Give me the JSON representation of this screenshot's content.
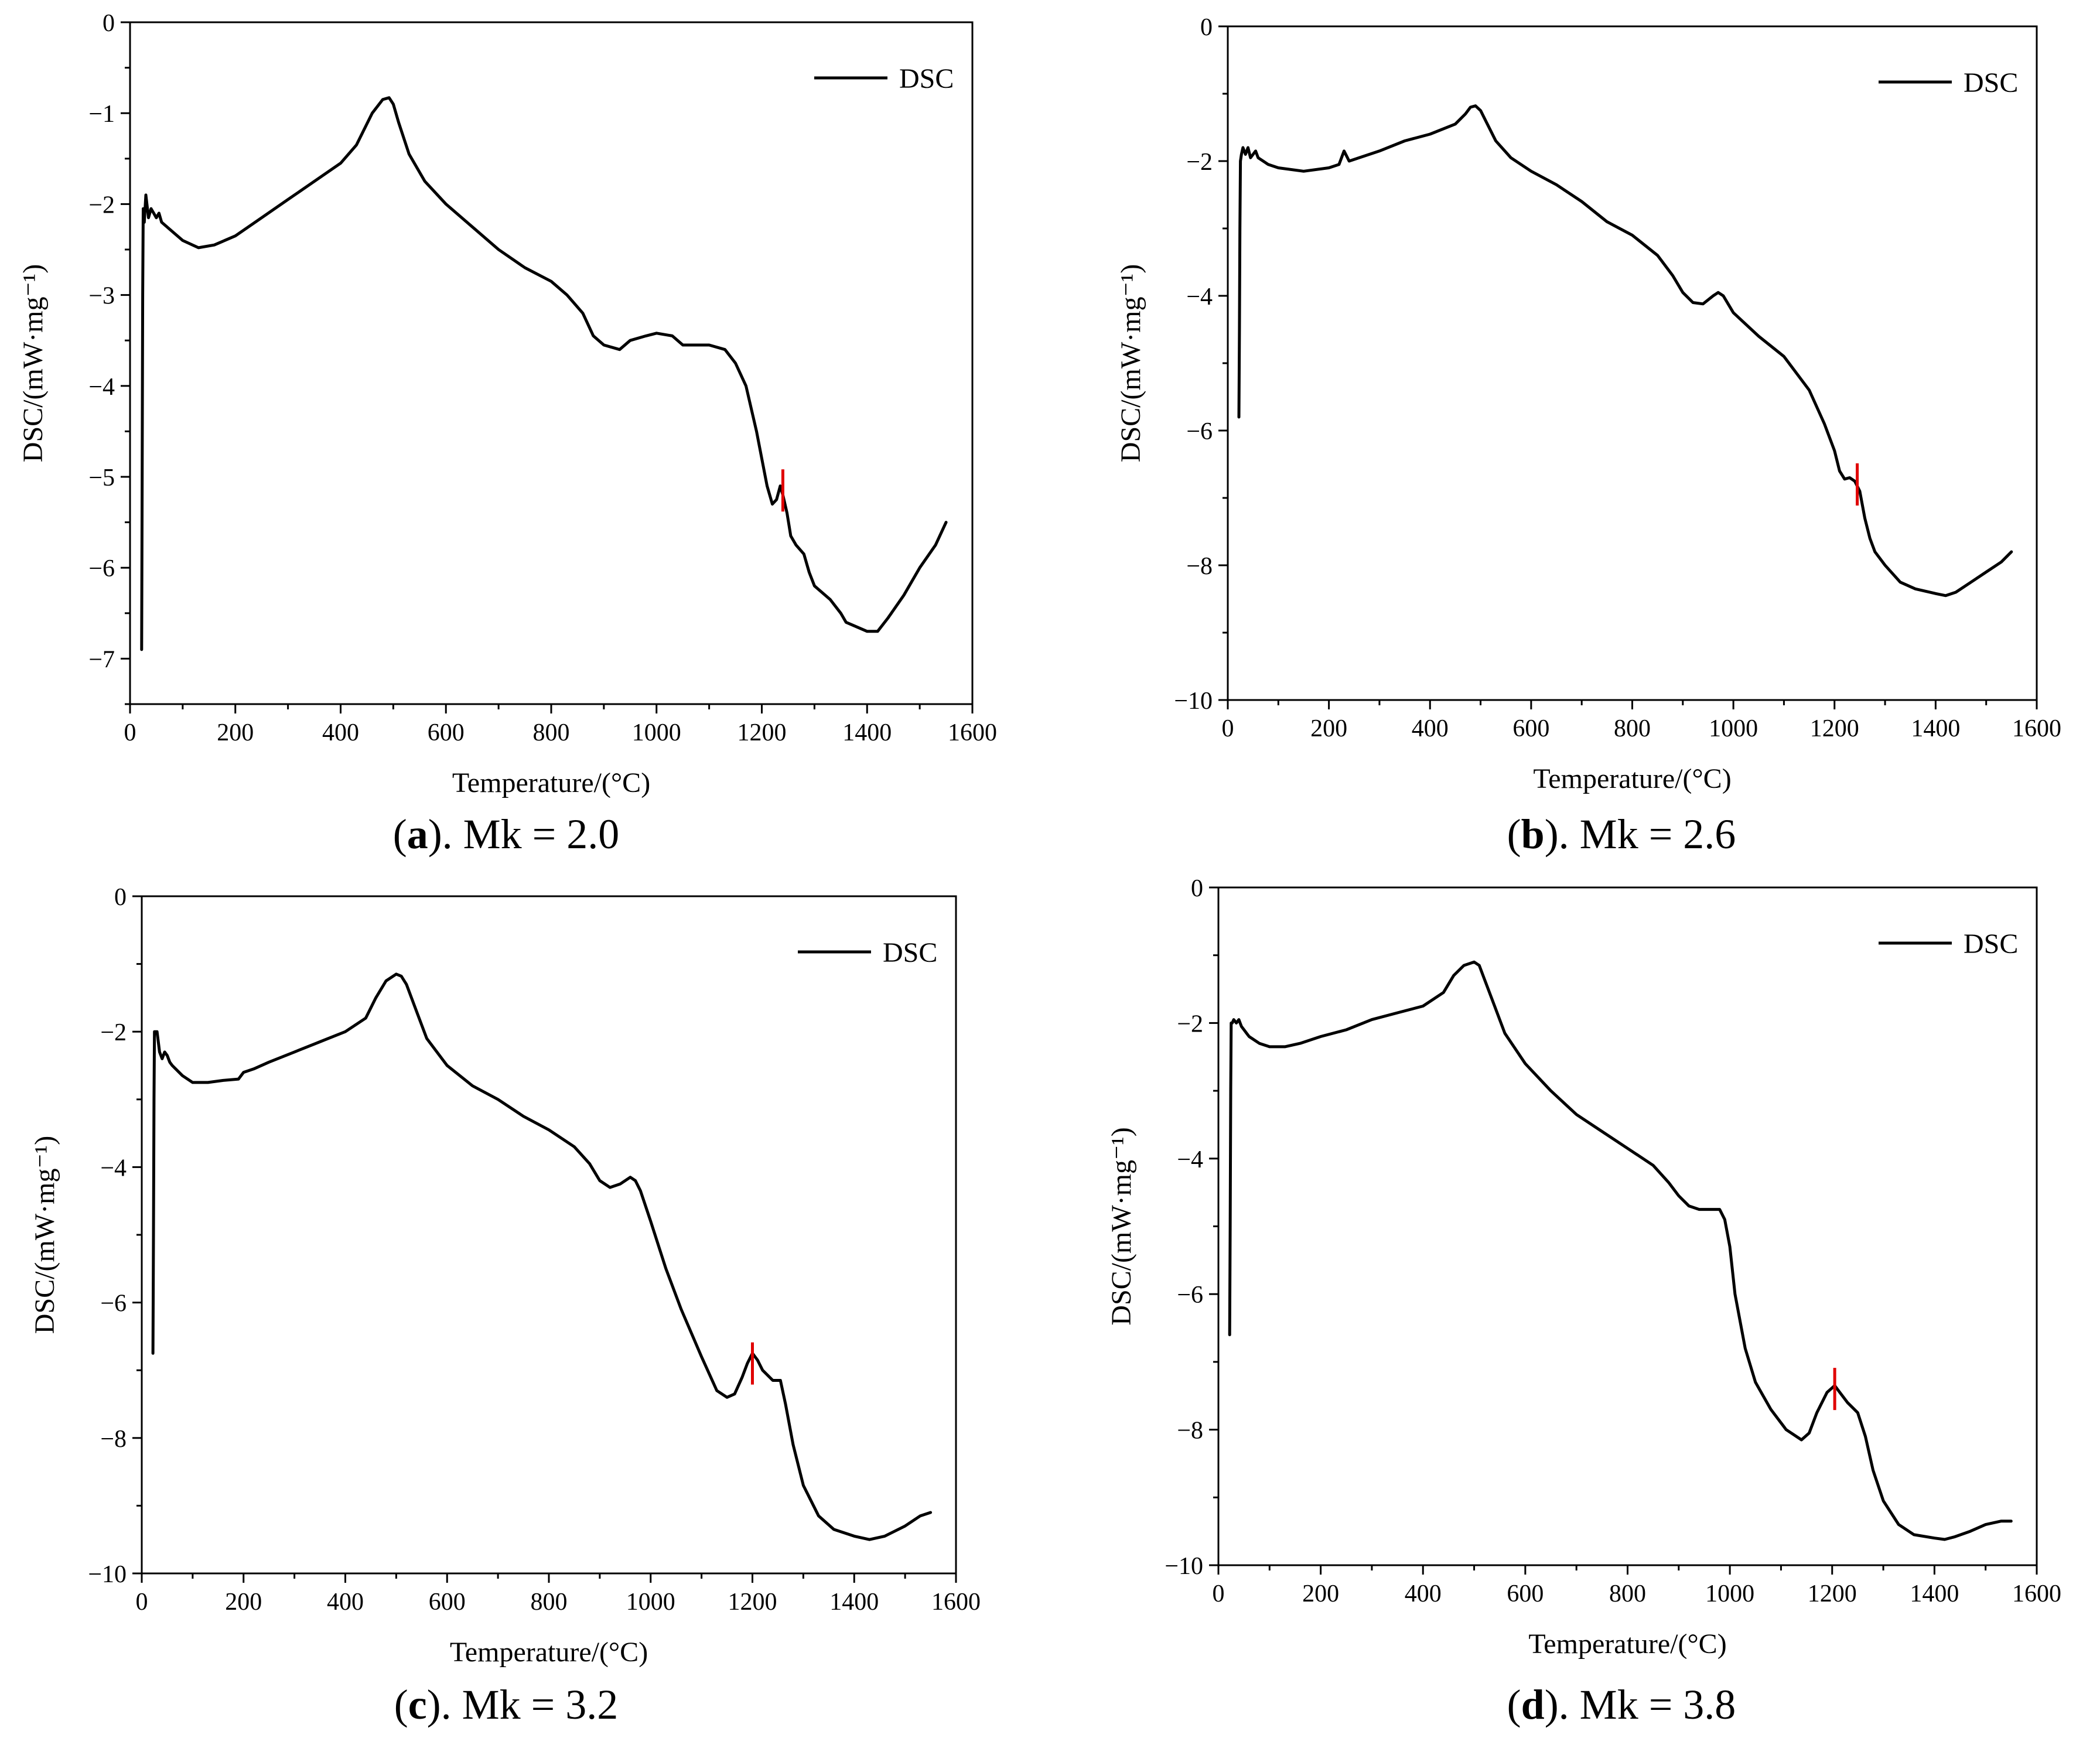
{
  "panels": [
    {
      "caption_letter": "a",
      "caption_rest": "). Mk = 2.0",
      "caption_open": "(",
      "chart_data": {
        "type": "line",
        "xlabel": "Temperature/(°C)",
        "ylabel": "DSC/(mW·mg⁻¹)",
        "xlim": [
          0,
          1600
        ],
        "ylim": [
          -7.5,
          0
        ],
        "xticks": [
          0,
          200,
          400,
          600,
          800,
          1000,
          1200,
          1400,
          1600
        ],
        "xtick_labels": [
          "0",
          "200",
          "400",
          "600",
          "800",
          "1000",
          "1200",
          "1400",
          "1600"
        ],
        "yticks": [
          0,
          -1,
          -2,
          -3,
          -4,
          -5,
          -6,
          -7
        ],
        "ytick_labels": [
          "0",
          "−1",
          "−2",
          "−3",
          "−4",
          "−5",
          "−6",
          "−7"
        ],
        "legend": "DSC",
        "legend_position": "top-right",
        "marker_x": 1240,
        "marker_y": -5.15,
        "series": [
          {
            "name": "DSC",
            "x": [
              22,
              23,
              24,
              25,
              27,
              30,
              35,
              40,
              45,
              50,
              55,
              60,
              80,
              100,
              130,
              160,
              200,
              250,
              300,
              350,
              400,
              430,
              460,
              480,
              492,
              500,
              510,
              530,
              560,
              600,
              650,
              700,
              750,
              800,
              830,
              860,
              880,
              900,
              930,
              950,
              980,
              1000,
              1030,
              1050,
              1070,
              1100,
              1130,
              1150,
              1170,
              1190,
              1200,
              1210,
              1220,
              1228,
              1235,
              1240,
              1248,
              1255,
              1265,
              1280,
              1290,
              1300,
              1330,
              1350,
              1360,
              1380,
              1400,
              1420,
              1440,
              1470,
              1500,
              1530,
              1550
            ],
            "y": [
              -6.9,
              -5.0,
              -3.0,
              -2.05,
              -2.2,
              -1.9,
              -2.15,
              -2.05,
              -2.1,
              -2.15,
              -2.1,
              -2.2,
              -2.3,
              -2.4,
              -2.48,
              -2.45,
              -2.35,
              -2.15,
              -1.95,
              -1.75,
              -1.55,
              -1.35,
              -1.0,
              -0.85,
              -0.83,
              -0.9,
              -1.1,
              -1.45,
              -1.75,
              -2.0,
              -2.25,
              -2.5,
              -2.7,
              -2.85,
              -3.0,
              -3.2,
              -3.45,
              -3.55,
              -3.6,
              -3.5,
              -3.45,
              -3.42,
              -3.45,
              -3.55,
              -3.55,
              -3.55,
              -3.6,
              -3.75,
              -4.0,
              -4.5,
              -4.8,
              -5.1,
              -5.3,
              -5.25,
              -5.1,
              -5.2,
              -5.4,
              -5.65,
              -5.75,
              -5.85,
              -6.05,
              -6.2,
              -6.35,
              -6.5,
              -6.6,
              -6.65,
              -6.7,
              -6.7,
              -6.55,
              -6.3,
              -6.0,
              -5.75,
              -5.5
            ]
          }
        ]
      }
    },
    {
      "caption_letter": "b",
      "caption_rest": "). Mk = 2.6",
      "caption_open": "(",
      "chart_data": {
        "type": "line",
        "xlabel": "Temperature/(°C)",
        "ylabel": "DSC/(mW·mg⁻¹)",
        "xlim": [
          0,
          1600
        ],
        "ylim": [
          -10,
          0
        ],
        "xticks": [
          0,
          200,
          400,
          600,
          800,
          1000,
          1200,
          1400,
          1600
        ],
        "xtick_labels": [
          "0",
          "200",
          "400",
          "600",
          "800",
          "1000",
          "1200",
          "1400",
          "1600"
        ],
        "yticks": [
          0,
          -2,
          -4,
          -6,
          -8,
          -10
        ],
        "ytick_labels": [
          "0",
          "−2",
          "−4",
          "−6",
          "−8",
          "−10"
        ],
        "legend": "DSC",
        "legend_position": "top-right",
        "marker_x": 1245,
        "marker_y": -6.8,
        "series": [
          {
            "name": "DSC",
            "x": [
              22,
              23,
              24,
              25,
              27,
              30,
              35,
              40,
              45,
              50,
              55,
              60,
              80,
              100,
              150,
              200,
              220,
              230,
              240,
              260,
              300,
              350,
              400,
              450,
              470,
              480,
              490,
              500,
              510,
              530,
              560,
              600,
              650,
              700,
              750,
              800,
              850,
              880,
              900,
              920,
              940,
              960,
              970,
              980,
              1000,
              1050,
              1100,
              1150,
              1180,
              1200,
              1210,
              1220,
              1230,
              1240,
              1250,
              1260,
              1270,
              1280,
              1300,
              1330,
              1360,
              1400,
              1420,
              1440,
              1470,
              1500,
              1530,
              1550
            ],
            "y": [
              -5.8,
              -4.5,
              -3.0,
              -2.0,
              -1.9,
              -1.8,
              -1.9,
              -1.8,
              -1.95,
              -1.9,
              -1.85,
              -1.95,
              -2.05,
              -2.1,
              -2.15,
              -2.1,
              -2.05,
              -1.85,
              -2.0,
              -1.95,
              -1.85,
              -1.7,
              -1.6,
              -1.45,
              -1.3,
              -1.2,
              -1.18,
              -1.25,
              -1.4,
              -1.7,
              -1.95,
              -2.15,
              -2.35,
              -2.6,
              -2.9,
              -3.1,
              -3.4,
              -3.7,
              -3.95,
              -4.1,
              -4.12,
              -4.0,
              -3.95,
              -4.0,
              -4.25,
              -4.6,
              -4.9,
              -5.4,
              -5.9,
              -6.3,
              -6.6,
              -6.72,
              -6.7,
              -6.75,
              -6.9,
              -7.3,
              -7.6,
              -7.8,
              -8.0,
              -8.25,
              -8.35,
              -8.42,
              -8.45,
              -8.4,
              -8.25,
              -8.1,
              -7.95,
              -7.8
            ]
          }
        ]
      }
    },
    {
      "caption_letter": "c",
      "caption_rest": "). Mk = 3.2",
      "caption_open": "(",
      "chart_data": {
        "type": "line",
        "xlabel": "Temperature/(°C)",
        "ylabel": "DSC/(mW·mg⁻¹)",
        "xlim": [
          0,
          1600
        ],
        "ylim": [
          -10,
          0
        ],
        "xticks": [
          0,
          200,
          400,
          600,
          800,
          1000,
          1200,
          1400,
          1600
        ],
        "xtick_labels": [
          "0",
          "200",
          "400",
          "600",
          "800",
          "1000",
          "1200",
          "1400",
          "1600"
        ],
        "yticks": [
          0,
          -2,
          -4,
          -6,
          -8,
          -10
        ],
        "ytick_labels": [
          "0",
          "−2",
          "−4",
          "−6",
          "−8",
          "−10"
        ],
        "legend": "DSC",
        "legend_position": "top-right",
        "marker_x": 1200,
        "marker_y": -6.9,
        "series": [
          {
            "name": "DSC",
            "x": [
              22,
              23,
              24,
              25,
              27,
              30,
              35,
              40,
              45,
              50,
              55,
              60,
              80,
              100,
              130,
              160,
              190,
              200,
              220,
              250,
              300,
              350,
              400,
              440,
              460,
              480,
              500,
              510,
              520,
              540,
              560,
              600,
              650,
              700,
              750,
              800,
              850,
              880,
              900,
              920,
              940,
              960,
              970,
              980,
              1000,
              1030,
              1060,
              1100,
              1130,
              1150,
              1165,
              1180,
              1190,
              1200,
              1210,
              1220,
              1240,
              1255,
              1265,
              1280,
              1300,
              1330,
              1360,
              1400,
              1430,
              1460,
              1500,
              1530,
              1550
            ],
            "y": [
              -6.75,
              -5.0,
              -3.0,
              -2.0,
              -2.0,
              -2.0,
              -2.3,
              -2.4,
              -2.3,
              -2.35,
              -2.45,
              -2.5,
              -2.65,
              -2.75,
              -2.75,
              -2.72,
              -2.7,
              -2.6,
              -2.55,
              -2.45,
              -2.3,
              -2.15,
              -2.0,
              -1.8,
              -1.5,
              -1.25,
              -1.15,
              -1.18,
              -1.3,
              -1.7,
              -2.1,
              -2.5,
              -2.8,
              -3.0,
              -3.25,
              -3.45,
              -3.7,
              -3.95,
              -4.2,
              -4.3,
              -4.25,
              -4.15,
              -4.2,
              -4.35,
              -4.8,
              -5.5,
              -6.1,
              -6.8,
              -7.3,
              -7.4,
              -7.35,
              -7.1,
              -6.9,
              -6.75,
              -6.85,
              -7.0,
              -7.15,
              -7.15,
              -7.5,
              -8.1,
              -8.7,
              -9.15,
              -9.35,
              -9.45,
              -9.5,
              -9.45,
              -9.3,
              -9.15,
              -9.1
            ]
          }
        ]
      }
    },
    {
      "caption_letter": "d",
      "caption_rest": "). Mk = 3.8",
      "caption_open": "(",
      "chart_data": {
        "type": "line",
        "xlabel": "Temperature/(°C)",
        "ylabel": "DSC/(mW·mg⁻¹)",
        "xlim": [
          0,
          1600
        ],
        "ylim": [
          -10,
          0
        ],
        "xticks": [
          0,
          200,
          400,
          600,
          800,
          1000,
          1200,
          1400,
          1600
        ],
        "xtick_labels": [
          "0",
          "200",
          "400",
          "600",
          "800",
          "1000",
          "1200",
          "1400",
          "1600"
        ],
        "yticks": [
          0,
          -2,
          -4,
          -6,
          -8,
          -10
        ],
        "ytick_labels": [
          "0",
          "−2",
          "−4",
          "−6",
          "−8",
          "−10"
        ],
        "legend": "DSC",
        "legend_position": "top-right",
        "marker_x": 1205,
        "marker_y": -7.4,
        "series": [
          {
            "name": "DSC",
            "x": [
              22,
              23,
              24,
              25,
              27,
              30,
              35,
              40,
              45,
              50,
              55,
              60,
              80,
              100,
              130,
              160,
              200,
              250,
              300,
              350,
              400,
              440,
              460,
              480,
              500,
              510,
              520,
              540,
              560,
              600,
              650,
              700,
              750,
              800,
              850,
              880,
              900,
              920,
              940,
              960,
              980,
              990,
              1000,
              1010,
              1030,
              1050,
              1080,
              1110,
              1140,
              1155,
              1170,
              1190,
              1205,
              1215,
              1230,
              1250,
              1265,
              1280,
              1300,
              1330,
              1360,
              1400,
              1420,
              1440,
              1470,
              1500,
              1530,
              1550
            ],
            "y": [
              -6.6,
              -5.0,
              -3.0,
              -2.0,
              -2.0,
              -1.95,
              -2.0,
              -1.95,
              -2.05,
              -2.1,
              -2.15,
              -2.2,
              -2.3,
              -2.35,
              -2.35,
              -2.3,
              -2.2,
              -2.1,
              -1.95,
              -1.85,
              -1.75,
              -1.55,
              -1.3,
              -1.15,
              -1.1,
              -1.15,
              -1.35,
              -1.75,
              -2.15,
              -2.6,
              -3.0,
              -3.35,
              -3.6,
              -3.85,
              -4.1,
              -4.35,
              -4.55,
              -4.7,
              -4.75,
              -4.75,
              -4.75,
              -4.9,
              -5.3,
              -6.0,
              -6.8,
              -7.3,
              -7.7,
              -8.0,
              -8.15,
              -8.05,
              -7.75,
              -7.45,
              -7.35,
              -7.45,
              -7.6,
              -7.75,
              -8.1,
              -8.6,
              -9.05,
              -9.4,
              -9.55,
              -9.6,
              -9.62,
              -9.58,
              -9.5,
              -9.4,
              -9.35,
              -9.35
            ]
          }
        ]
      }
    }
  ]
}
